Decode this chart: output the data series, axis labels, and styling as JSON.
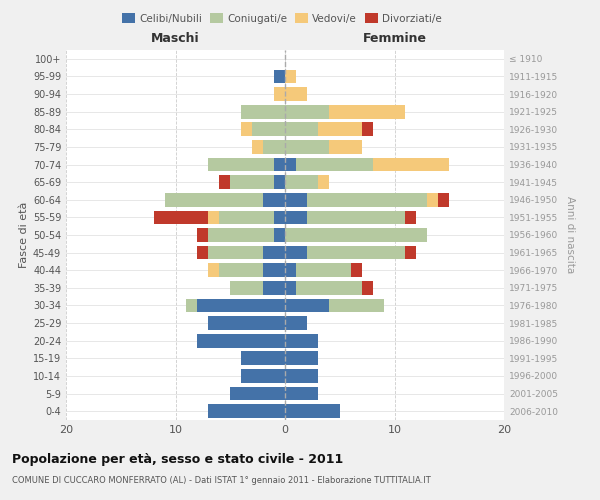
{
  "age_groups": [
    "0-4",
    "5-9",
    "10-14",
    "15-19",
    "20-24",
    "25-29",
    "30-34",
    "35-39",
    "40-44",
    "45-49",
    "50-54",
    "55-59",
    "60-64",
    "65-69",
    "70-74",
    "75-79",
    "80-84",
    "85-89",
    "90-94",
    "95-99",
    "100+"
  ],
  "birth_years": [
    "2006-2010",
    "2001-2005",
    "1996-2000",
    "1991-1995",
    "1986-1990",
    "1981-1985",
    "1976-1980",
    "1971-1975",
    "1966-1970",
    "1961-1965",
    "1956-1960",
    "1951-1955",
    "1946-1950",
    "1941-1945",
    "1936-1940",
    "1931-1935",
    "1926-1930",
    "1921-1925",
    "1916-1920",
    "1911-1915",
    "≤ 1910"
  ],
  "maschi": {
    "celibi": [
      7,
      5,
      4,
      4,
      8,
      7,
      8,
      2,
      2,
      2,
      1,
      1,
      2,
      1,
      1,
      0,
      0,
      0,
      0,
      1,
      0
    ],
    "coniugati": [
      0,
      0,
      0,
      0,
      0,
      0,
      1,
      3,
      4,
      5,
      6,
      5,
      9,
      4,
      6,
      2,
      3,
      4,
      0,
      0,
      0
    ],
    "vedovi": [
      0,
      0,
      0,
      0,
      0,
      0,
      0,
      0,
      1,
      0,
      0,
      1,
      0,
      0,
      0,
      1,
      1,
      0,
      1,
      0,
      0
    ],
    "divorziati": [
      0,
      0,
      0,
      0,
      0,
      0,
      0,
      0,
      0,
      1,
      1,
      5,
      0,
      1,
      0,
      0,
      0,
      0,
      0,
      0,
      0
    ]
  },
  "femmine": {
    "nubili": [
      5,
      3,
      3,
      3,
      3,
      2,
      4,
      1,
      1,
      2,
      0,
      2,
      2,
      0,
      1,
      0,
      0,
      0,
      0,
      0,
      0
    ],
    "coniugate": [
      0,
      0,
      0,
      0,
      0,
      0,
      5,
      6,
      5,
      9,
      13,
      9,
      11,
      3,
      7,
      4,
      3,
      4,
      0,
      0,
      0
    ],
    "vedove": [
      0,
      0,
      0,
      0,
      0,
      0,
      0,
      0,
      0,
      0,
      0,
      0,
      1,
      1,
      7,
      3,
      4,
      7,
      2,
      1,
      0
    ],
    "divorziate": [
      0,
      0,
      0,
      0,
      0,
      0,
      0,
      1,
      1,
      1,
      0,
      1,
      1,
      0,
      0,
      0,
      1,
      0,
      0,
      0,
      0
    ]
  },
  "colors": {
    "celibi_nubili": "#4472a8",
    "coniugati": "#b5c9a0",
    "vedovi": "#f5c97a",
    "divorziati": "#c0392b"
  },
  "xlim": 20,
  "title": "Popolazione per età, sesso e stato civile - 2011",
  "subtitle": "COMUNE DI CUCCARO MONFERRATO (AL) - Dati ISTAT 1° gennaio 2011 - Elaborazione TUTTITALIA.IT",
  "xlabel_left": "Maschi",
  "xlabel_right": "Femmine",
  "ylabel_left": "Fasce di età",
  "ylabel_right": "Anni di nascita",
  "legend_labels": [
    "Celibi/Nubili",
    "Coniugati/e",
    "Vedovi/e",
    "Divorziati/e"
  ],
  "background_color": "#f0f0f0",
  "plot_bg": "#ffffff"
}
